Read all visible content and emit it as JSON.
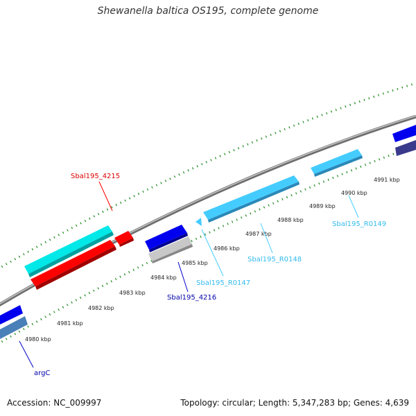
{
  "title": "Shewanella baltica OS195, complete genome",
  "footer": {
    "accession": "Accession: NC_009997",
    "stats": "Topology: circular; Length: 5,347,283 bp; Genes: 4,639"
  },
  "kbp_labels": [
    "4980 kbp",
    "4981 kbp",
    "4982 kbp",
    "4983 kbp",
    "4984 kbp",
    "4985 kbp",
    "4986 kbp",
    "4987 kbp",
    "4988 kbp",
    "4989 kbp",
    "4990 kbp",
    "4991 kbp"
  ],
  "gene_labels": {
    "sbal4215": "Sbal195_4215",
    "sbal4216": "Sbal195_4216",
    "r0147": "Sbal195_R0147",
    "r0148": "Sbal195_R0148",
    "r0149": "Sbal195_R0149",
    "argc": "argC"
  },
  "colors": {
    "backbone": "#8a8a8a",
    "tick": "#1e8a1e",
    "red": "#ff0000",
    "cyan": "#00ffff",
    "blue": "#0000ee",
    "lightblue": "#44ccff",
    "gray": "#b8b8b8",
    "steelblue": "#4a80b8",
    "navy": "#2a2a88"
  }
}
